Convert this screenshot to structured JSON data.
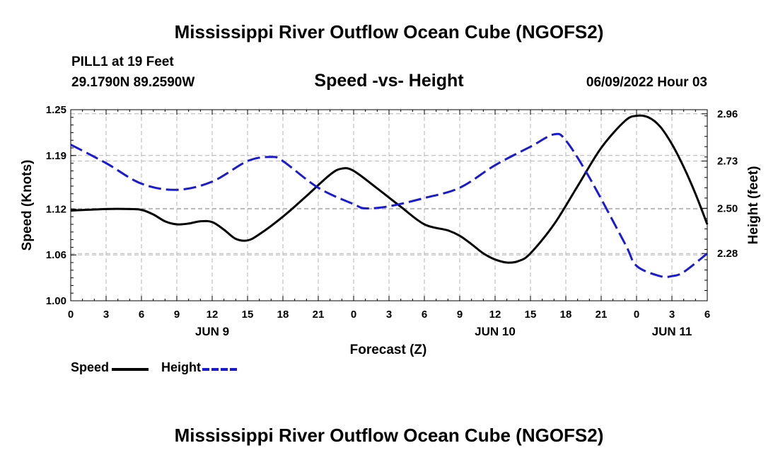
{
  "chart_data": {
    "type": "line",
    "title": "Mississippi River Outflow Ocean Cube (NGOFS2)",
    "station": "PILL1 at 19 Feet",
    "location": "29.1790N  89.2590W",
    "subtitle": "Speed -vs- Height",
    "datetime": "06/09/2022 Hour 03",
    "xlabel": "Forecast (Z)",
    "ylabel_left": "Speed (Knots)",
    "ylabel_right": "Height (feet)",
    "x_range": [
      0,
      54
    ],
    "ylim_left": [
      1.0,
      1.25
    ],
    "ylim_right": [
      2.05,
      2.98
    ],
    "x_ticks": [
      0,
      3,
      6,
      9,
      12,
      15,
      18,
      21,
      24,
      27,
      30,
      33,
      36,
      39,
      42,
      45,
      48,
      51,
      54
    ],
    "x_tick_labels": [
      "0",
      "3",
      "6",
      "9",
      "12",
      "15",
      "18",
      "21",
      "0",
      "3",
      "6",
      "9",
      "12",
      "15",
      "18",
      "21",
      "0",
      "3",
      "6"
    ],
    "date_labels": [
      {
        "label": "JUN 9",
        "x": 12
      },
      {
        "label": "JUN 10",
        "x": 36
      },
      {
        "label": "JUN 11",
        "x": 51
      }
    ],
    "y_ticks_left": [
      "1.00",
      "1.06",
      "1.12",
      "1.19",
      "1.25"
    ],
    "y_ticks_right": [
      "2.28",
      "2.50",
      "2.73",
      "2.96"
    ],
    "series": [
      {
        "name": "Speed",
        "axis": "left",
        "color": "#000000",
        "x": [
          0,
          3,
          5,
          6,
          7,
          8,
          9,
          10,
          11,
          12,
          13,
          14,
          15,
          16,
          18,
          20,
          22,
          23,
          24,
          26,
          28,
          30,
          32,
          33,
          34,
          35,
          36,
          37,
          38,
          39,
          41,
          43,
          45,
          47,
          48,
          49,
          50,
          51,
          52,
          53,
          54
        ],
        "values": [
          1.118,
          1.12,
          1.12,
          1.119,
          1.113,
          1.104,
          1.1,
          1.101,
          1.104,
          1.103,
          1.093,
          1.081,
          1.079,
          1.087,
          1.11,
          1.137,
          1.165,
          1.173,
          1.17,
          1.147,
          1.123,
          1.1,
          1.092,
          1.085,
          1.074,
          1.062,
          1.054,
          1.05,
          1.052,
          1.062,
          1.1,
          1.15,
          1.2,
          1.235,
          1.242,
          1.24,
          1.228,
          1.205,
          1.175,
          1.14,
          1.1
        ]
      },
      {
        "name": "Height",
        "axis": "right",
        "color": "#1a1ad6",
        "x": [
          0,
          3,
          6,
          9,
          12,
          15,
          17,
          18,
          21,
          24,
          25,
          27,
          30,
          33,
          36,
          39,
          41,
          42,
          44,
          47,
          48,
          50,
          51,
          52,
          54
        ],
        "values": [
          2.81,
          2.72,
          2.62,
          2.59,
          2.63,
          2.73,
          2.75,
          2.73,
          2.6,
          2.52,
          2.5,
          2.51,
          2.55,
          2.6,
          2.71,
          2.8,
          2.86,
          2.83,
          2.65,
          2.33,
          2.22,
          2.17,
          2.17,
          2.19,
          2.28
        ]
      }
    ],
    "legend": [
      {
        "label": "Speed",
        "color": "#000000",
        "style": "solid"
      },
      {
        "label": "Height",
        "color": "#1a1ad6",
        "style": "dashed"
      }
    ],
    "footer_title": "Mississippi River Outflow Ocean Cube (NGOFS2)"
  }
}
